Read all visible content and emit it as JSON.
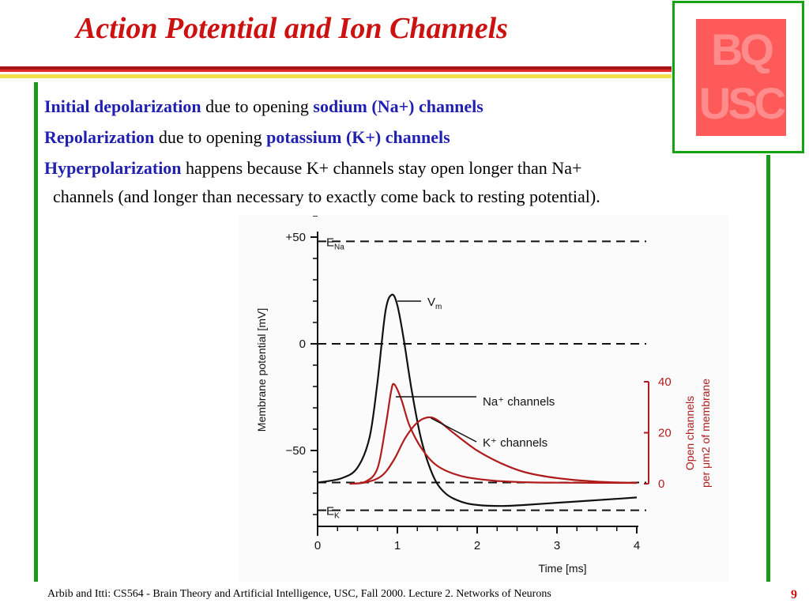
{
  "slide": {
    "title": "Action Potential and Ion Channels",
    "page_number": "9",
    "footer": "Arbib and Itti: CS564 - Brain Theory and Artificial Intelligence,  USC, Fall 2000. Lecture 2. Networks of Neurons"
  },
  "logo": {
    "text_top": "BQ",
    "text_bottom": "USC",
    "color": "#ff5a5a"
  },
  "bullets": [
    {
      "term": "Initial depolarization",
      "text": " due to opening ",
      "emph": "sodium (Na+) channels"
    },
    {
      "term": "Repolarization",
      "text": " due to opening ",
      "emph": "potassium (K+) channels"
    },
    {
      "term": "Hyperpolarization",
      "text": " happens because K+ channels stay open longer than Na+",
      "cont": "channels (and longer than necessary to exactly come back to resting potential)."
    }
  ],
  "colors": {
    "title": "#cc1111",
    "term": "#1f1fb0",
    "accent_bar": "#1a9a1a",
    "channels": "#b01c1c",
    "vm": "#111111"
  },
  "chart_data": {
    "type": "line",
    "xlabel": "Time [ms]",
    "ylabel": "Membrane potential [mV]",
    "ylabel_right_1": "Open channels",
    "ylabel_right_2": "per μm2 of membrane",
    "xlim": [
      0,
      4
    ],
    "ylim": [
      -80,
      60
    ],
    "y2lim": [
      0,
      40
    ],
    "x_ticks": [
      "0",
      "1",
      "2",
      "3",
      "4"
    ],
    "y_ticks": [
      "+50",
      "0",
      "−50"
    ],
    "y2_ticks": [
      "40",
      "20",
      "0"
    ],
    "reference_lines": [
      {
        "label": "E",
        "sub": "Na",
        "y": 48
      },
      {
        "label": "",
        "sub": "",
        "y": 0
      },
      {
        "label": "",
        "sub": "",
        "y": -65
      },
      {
        "label": "E",
        "sub": "K",
        "y": -78
      }
    ],
    "series": [
      {
        "name": "V",
        "name_sub": "m",
        "axis": "left",
        "x": [
          0,
          0.3,
          0.5,
          0.65,
          0.75,
          0.85,
          0.93,
          1.0,
          1.08,
          1.18,
          1.3,
          1.45,
          1.6,
          1.8,
          2.0,
          2.3,
          2.6,
          3.0,
          3.4,
          3.8,
          4.0
        ],
        "y": [
          -65,
          -63,
          -58,
          -44,
          -18,
          15,
          23,
          18,
          2,
          -22,
          -45,
          -62,
          -70,
          -74,
          -75.5,
          -76,
          -75.5,
          -74.5,
          -73.5,
          -72.5,
          -72
        ]
      },
      {
        "name": "Na⁺ channels",
        "axis": "right",
        "x": [
          0.4,
          0.6,
          0.75,
          0.85,
          0.92,
          0.96,
          1.05,
          1.15,
          1.3,
          1.5,
          1.8,
          2.2,
          2.6,
          3.0,
          4.0
        ],
        "y": [
          0,
          0.8,
          6,
          22,
          36,
          39,
          33,
          23,
          14,
          7,
          3,
          1.2,
          0.6,
          0.4,
          0.3
        ]
      },
      {
        "name": "K⁺ channels",
        "axis": "right",
        "x": [
          0.4,
          0.6,
          0.8,
          0.95,
          1.1,
          1.25,
          1.38,
          1.5,
          1.7,
          2.0,
          2.3,
          2.6,
          3.0,
          3.5,
          4.0
        ],
        "y": [
          0,
          0.5,
          3,
          9,
          18,
          24,
          26,
          25,
          20,
          13,
          8,
          4.5,
          2.2,
          0.8,
          0.3
        ]
      }
    ]
  }
}
